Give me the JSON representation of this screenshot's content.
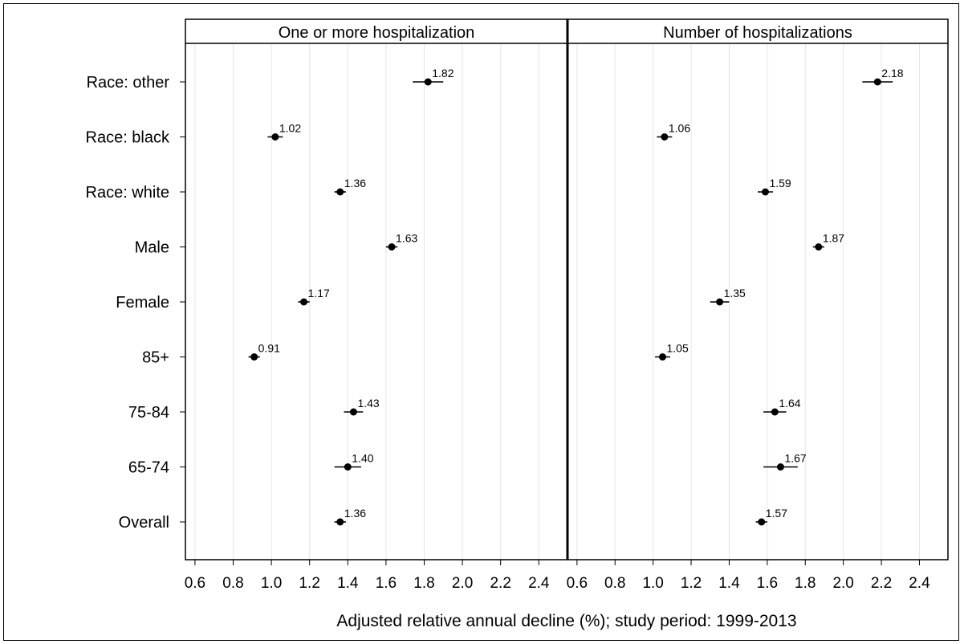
{
  "chart_data": {
    "type": "scatter",
    "xlabel": "Adjusted relative annual decline (%); study period: 1999-2013",
    "xlim": [
      0.55,
      2.55
    ],
    "x_ticks": [
      0.6,
      0.8,
      1.0,
      1.2,
      1.4,
      1.6,
      1.8,
      2.0,
      2.2,
      2.4
    ],
    "x_tick_labels": [
      "0.6",
      "0.8",
      "1.0",
      "1.2",
      "1.4",
      "1.6",
      "1.8",
      "2.0",
      "2.2",
      "2.4"
    ],
    "categories": [
      "Race: other",
      "Race: black",
      "Race: white",
      "Male",
      "Female",
      "85+",
      "75-84",
      "65-74",
      "Overall"
    ],
    "grid": true,
    "panels": [
      {
        "title": "One or more hospitalization",
        "points": [
          {
            "category": "Race: other",
            "value": 1.82,
            "label": "1.82",
            "low": 1.74,
            "high": 1.9
          },
          {
            "category": "Race: black",
            "value": 1.02,
            "label": "1.02",
            "low": 0.98,
            "high": 1.06
          },
          {
            "category": "Race: white",
            "value": 1.36,
            "label": "1.36",
            "low": 1.33,
            "high": 1.39
          },
          {
            "category": "Male",
            "value": 1.63,
            "label": "1.63",
            "low": 1.6,
            "high": 1.66
          },
          {
            "category": "Female",
            "value": 1.17,
            "label": "1.17",
            "low": 1.14,
            "high": 1.2
          },
          {
            "category": "85+",
            "value": 0.91,
            "label": "0.91",
            "low": 0.88,
            "high": 0.94
          },
          {
            "category": "75-84",
            "value": 1.43,
            "label": "1.43",
            "low": 1.38,
            "high": 1.48
          },
          {
            "category": "65-74",
            "value": 1.4,
            "label": "1.40",
            "low": 1.33,
            "high": 1.47
          },
          {
            "category": "Overall",
            "value": 1.36,
            "label": "1.36",
            "low": 1.33,
            "high": 1.39
          }
        ]
      },
      {
        "title": "Number of hospitalizations",
        "points": [
          {
            "category": "Race: other",
            "value": 2.18,
            "label": "2.18",
            "low": 2.1,
            "high": 2.26
          },
          {
            "category": "Race: black",
            "value": 1.06,
            "label": "1.06",
            "low": 1.02,
            "high": 1.1
          },
          {
            "category": "Race: white",
            "value": 1.59,
            "label": "1.59",
            "low": 1.55,
            "high": 1.63
          },
          {
            "category": "Male",
            "value": 1.87,
            "label": "1.87",
            "low": 1.84,
            "high": 1.9
          },
          {
            "category": "Female",
            "value": 1.35,
            "label": "1.35",
            "low": 1.3,
            "high": 1.4
          },
          {
            "category": "85+",
            "value": 1.05,
            "label": "1.05",
            "low": 1.01,
            "high": 1.09
          },
          {
            "category": "75-84",
            "value": 1.64,
            "label": "1.64",
            "low": 1.58,
            "high": 1.7
          },
          {
            "category": "65-74",
            "value": 1.67,
            "label": "1.67",
            "low": 1.58,
            "high": 1.76
          },
          {
            "category": "Overall",
            "value": 1.57,
            "label": "1.57",
            "low": 1.54,
            "high": 1.6
          }
        ]
      }
    ]
  }
}
